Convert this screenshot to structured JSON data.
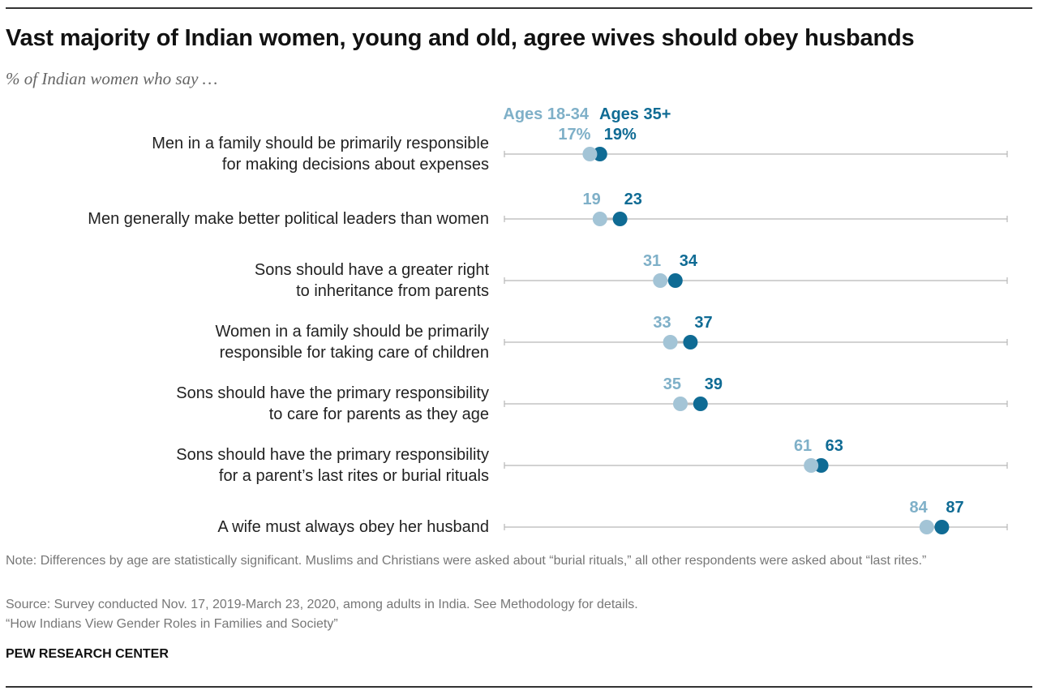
{
  "title": "Vast majority of Indian women, young and old, agree wives should obey husbands",
  "subtitle": "% of Indian women who say …",
  "legend": {
    "young": "Ages 18-34",
    "old": "Ages 35+"
  },
  "colors": {
    "young": "#a3c4d6",
    "old": "#0f6b94",
    "young_label": "#7fb0c8",
    "axis": "#b8b8b8",
    "connector": "#bbbbbb"
  },
  "chart_data": {
    "type": "dot",
    "title": "Vast majority of Indian women, young and old, agree wives should obey husbands",
    "subtitle": "% of Indian women who say …",
    "xlim": [
      0,
      100
    ],
    "legend_position": "top",
    "series": [
      {
        "name": "Ages 18-34",
        "values": [
          17,
          19,
          31,
          33,
          35,
          61,
          84
        ]
      },
      {
        "name": "Ages 35+",
        "values": [
          19,
          23,
          34,
          37,
          39,
          63,
          87
        ]
      }
    ],
    "categories": [
      "Men in a family should be primarily responsible for making decisions about expenses",
      "Men generally make better political leaders than women",
      "Sons should have a greater right to inheritance from parents",
      "Women in a family should be primarily responsible for taking care of children",
      "Sons should have the primary responsibility to care for parents as they age",
      "Sons should have the primary responsibility for a parent’s last rites or burial rituals",
      "A wife must always obey her husband"
    ],
    "rows": [
      {
        "lines": [
          "Men in a family should be primarily responsible",
          "for making decisions about expenses"
        ],
        "young": 17,
        "old": 19,
        "young_label": "17%",
        "old_label": "19%"
      },
      {
        "lines": [
          "Men generally make better political leaders than women"
        ],
        "young": 19,
        "old": 23,
        "young_label": "19",
        "old_label": "23"
      },
      {
        "lines": [
          "Sons should have a greater right",
          "to inheritance from parents"
        ],
        "young": 31,
        "old": 34,
        "young_label": "31",
        "old_label": "34"
      },
      {
        "lines": [
          "Women in a family should be primarily",
          "responsible for taking care of children"
        ],
        "young": 33,
        "old": 37,
        "young_label": "33",
        "old_label": "37"
      },
      {
        "lines": [
          "Sons should have the primary responsibility",
          "to care for parents as they age"
        ],
        "young": 35,
        "old": 39,
        "young_label": "35",
        "old_label": "39"
      },
      {
        "lines": [
          "Sons should have the primary responsibility",
          "for a parent’s last rites or burial rituals"
        ],
        "young": 61,
        "old": 63,
        "young_label": "61",
        "old_label": "63"
      },
      {
        "lines": [
          "A wife must always obey her husband"
        ],
        "young": 84,
        "old": 87,
        "young_label": "84",
        "old_label": "87"
      }
    ]
  },
  "notes": {
    "note": "Note: Differences by age are statistically significant. Muslims and Christians were asked about “burial rituals,” all other respondents were asked about “last rites.”",
    "source": "Source: Survey conducted Nov. 17, 2019-March 23, 2020, among adults in India. See Methodology for details.",
    "report": "“How Indians View Gender Roles in Families and Society”"
  },
  "credit": "PEW RESEARCH CENTER"
}
